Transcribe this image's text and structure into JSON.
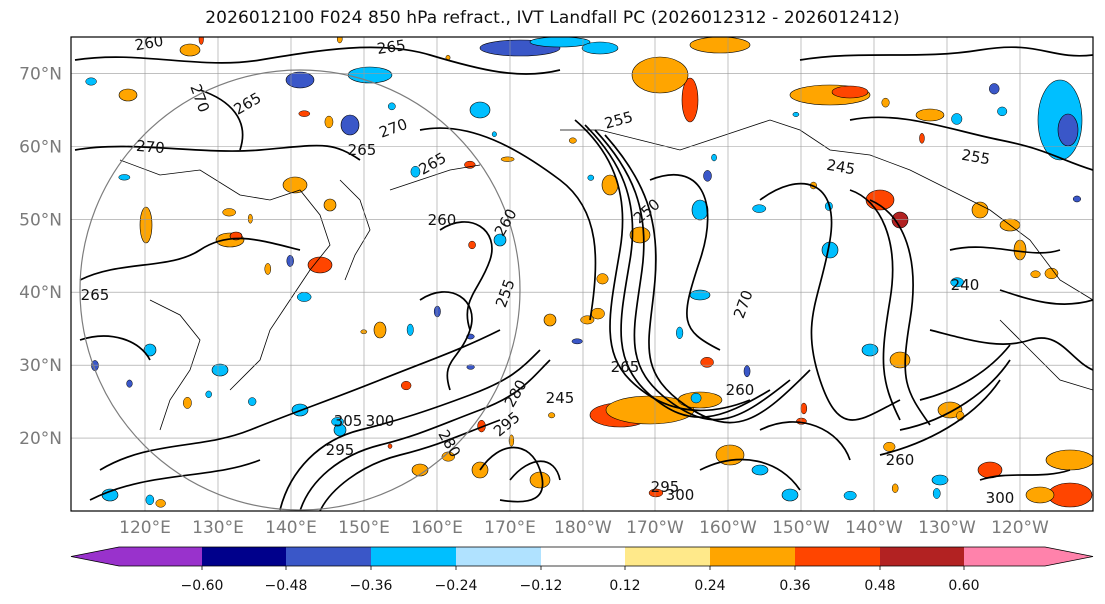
{
  "title": "2026012100 F024 850 hPa refract., IVT Landfall PC (2026012312 - 2026012412)",
  "map": {
    "lat_labels": [
      "70°N",
      "60°N",
      "50°N",
      "40°N",
      "30°N",
      "20°N"
    ],
    "lat_values": [
      70,
      60,
      50,
      40,
      30,
      20
    ],
    "lon_labels": [
      "120°E",
      "130°E",
      "140°E",
      "150°E",
      "160°E",
      "170°E",
      "180°W",
      "170°W",
      "160°W",
      "150°W",
      "140°W",
      "130°W",
      "120°W"
    ],
    "lat_range": [
      10,
      75
    ],
    "contour_labels": [
      "260",
      "265",
      "270",
      "265",
      "270",
      "270",
      "265",
      "265",
      "260",
      "255",
      "260",
      "250",
      "245",
      "245",
      "255",
      "240",
      "255",
      "260",
      "265",
      "270",
      "280",
      "295",
      "300",
      "305",
      "300",
      "295",
      "280",
      "295",
      "300",
      "265",
      "260"
    ],
    "contour_color": "#000000",
    "coastline_color": "#000000"
  },
  "colorbar": {
    "colors": [
      "#9932cc",
      "#00008b",
      "#3a57c8",
      "#00bfff",
      "#b0e2ff",
      "#ffffff",
      "#ffe98a",
      "#ffa500",
      "#ff4500",
      "#b22222",
      "#ff82ab"
    ],
    "tick_labels": [
      "−0.60",
      "−0.48",
      "−0.36",
      "−0.24",
      "−0.12",
      "0.12",
      "0.24",
      "0.36",
      "0.48",
      "0.60"
    ],
    "tick_values": [
      -0.6,
      -0.48,
      -0.36,
      -0.24,
      -0.12,
      0.12,
      0.24,
      0.36,
      0.48,
      0.6
    ],
    "extend": "both"
  }
}
